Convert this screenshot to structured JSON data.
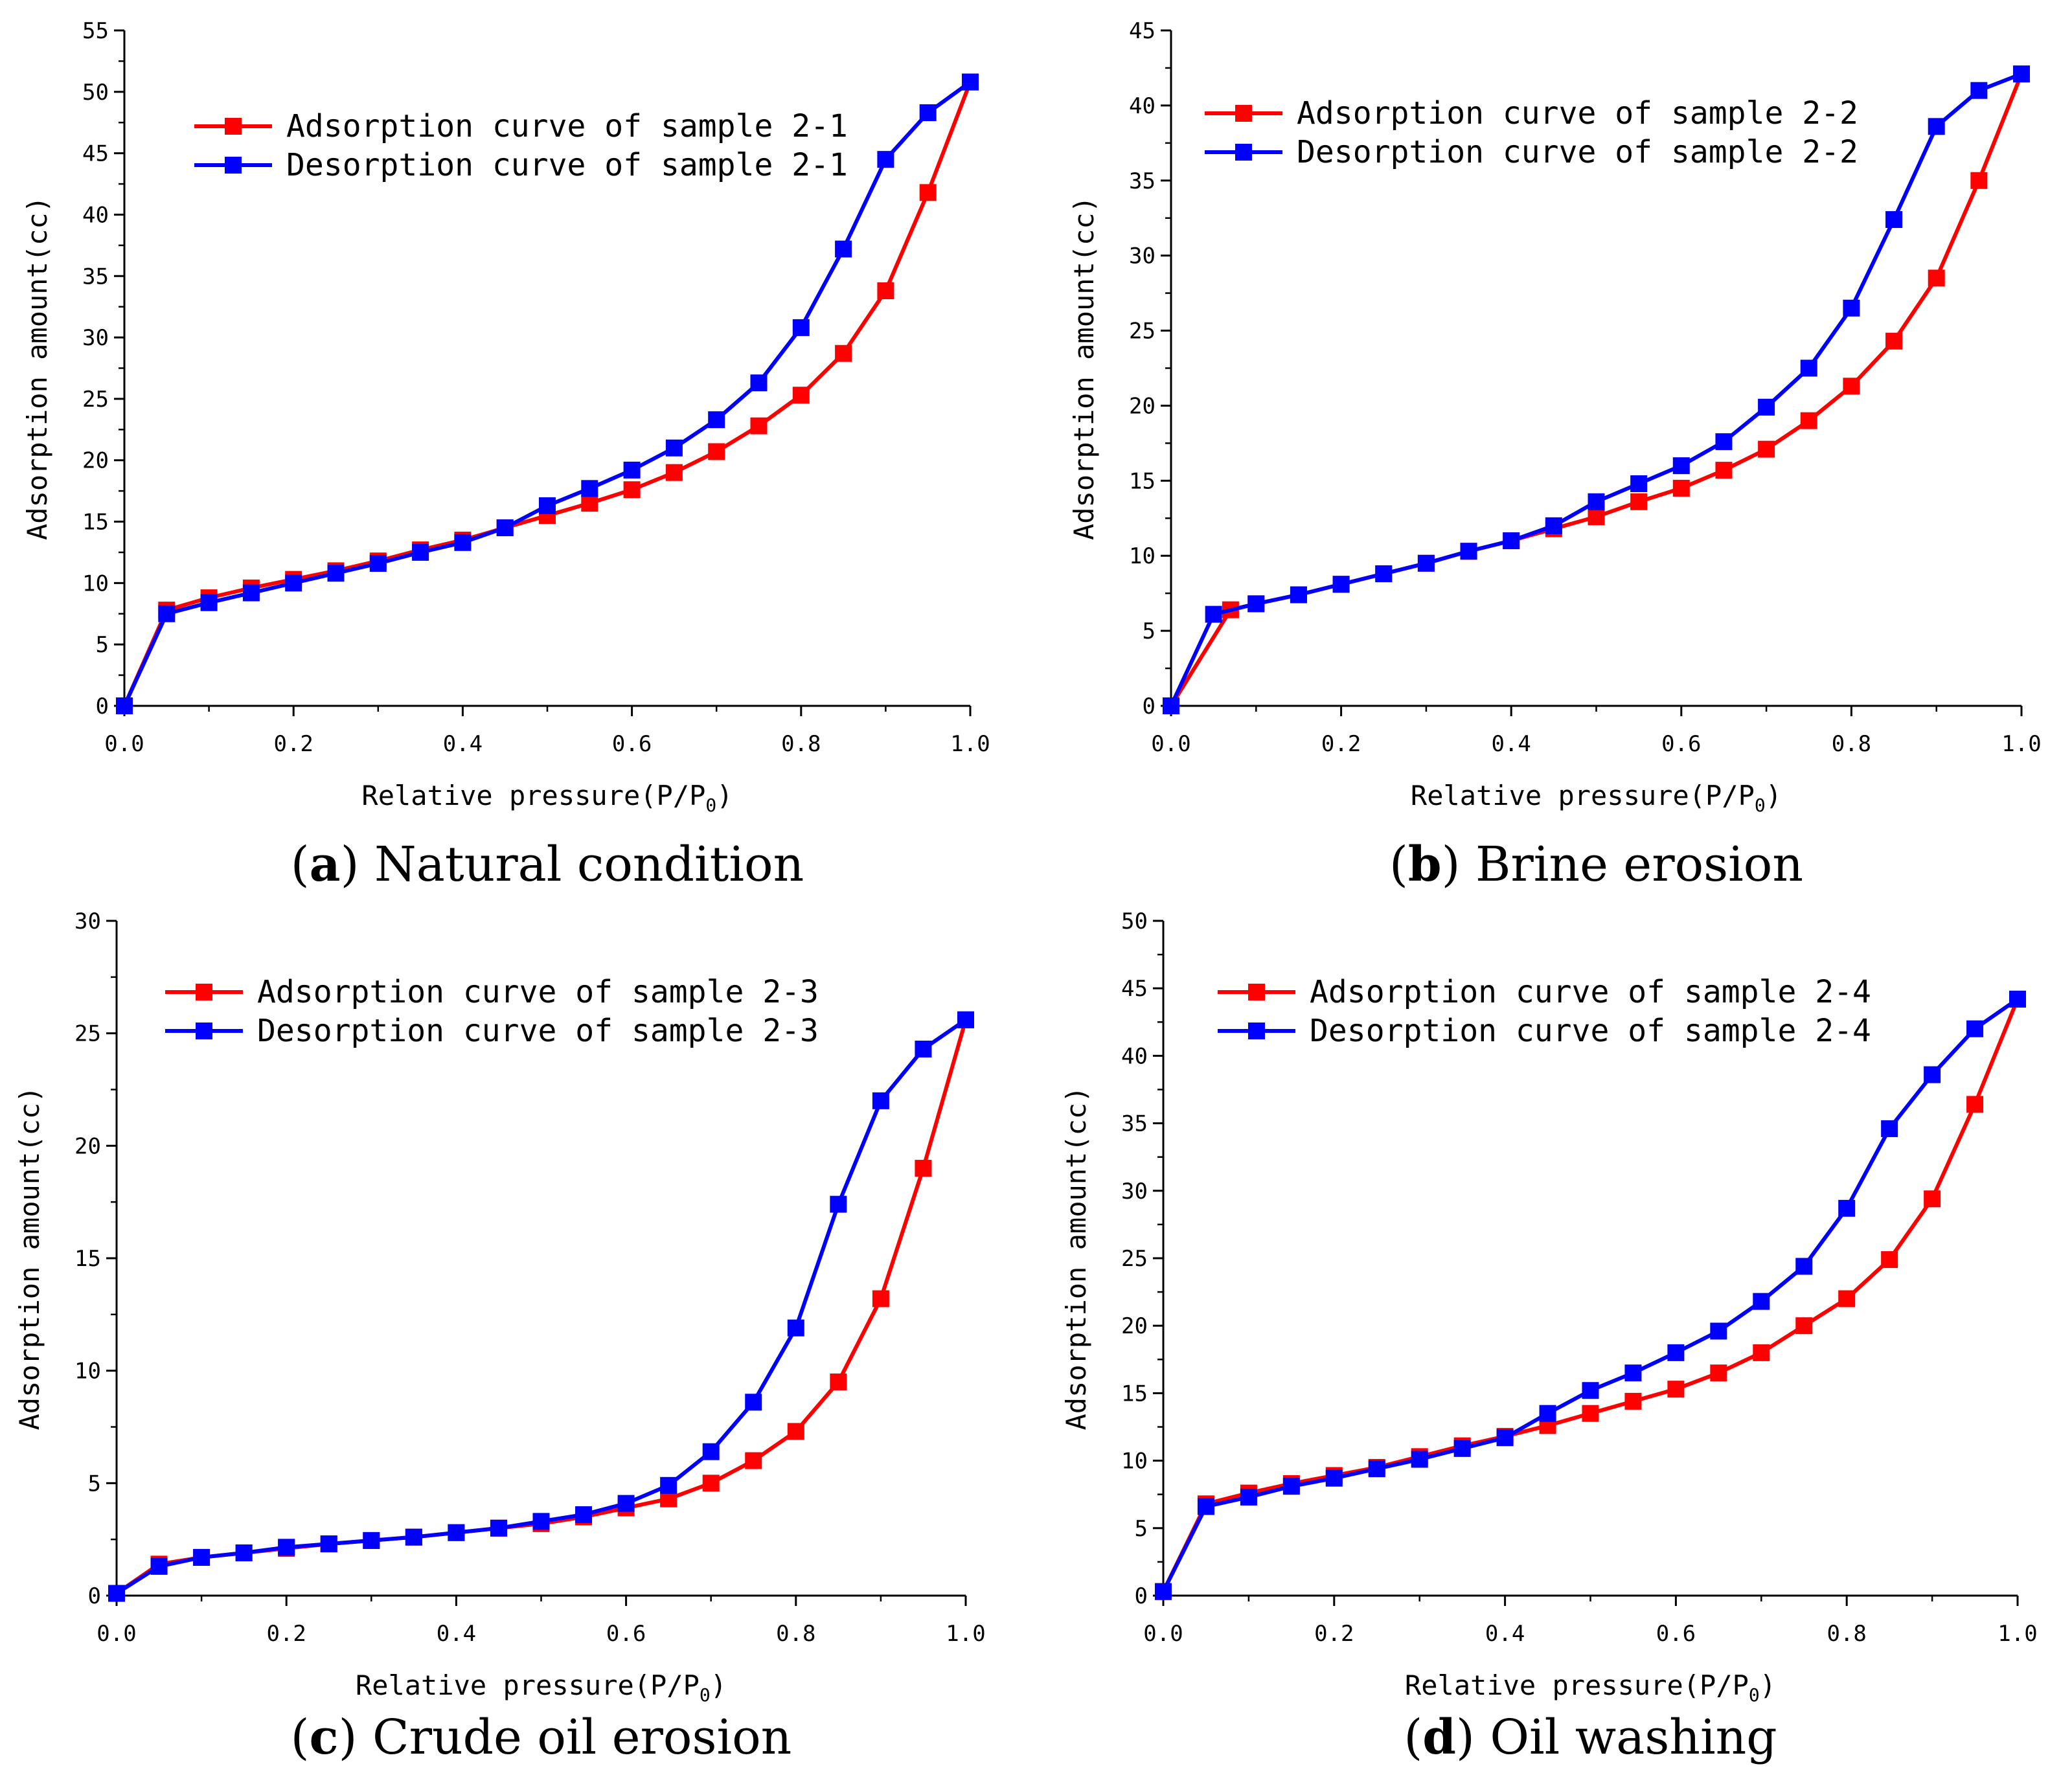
{
  "colors": {
    "adsorption": "#ff0000",
    "desorption": "#0000ff",
    "axis": "#000000"
  },
  "chart_data": [
    {
      "type": "line",
      "panel": "a",
      "caption": {
        "letter": "a",
        "text": "Natural condition"
      },
      "xlabel": "Relative pressure(P/P",
      "xlabel_sub": "0",
      "xlabel_end": ")",
      "ylabel": "Adsorption amount(cc)",
      "xlim": [
        0,
        1.0
      ],
      "ylim": [
        0,
        55
      ],
      "xticks": [
        "0.0",
        "0.2",
        "0.4",
        "0.6",
        "0.8",
        "1.0"
      ],
      "yticks": [
        "0",
        "5",
        "10",
        "15",
        "20",
        "25",
        "30",
        "35",
        "40",
        "45",
        "50",
        "55"
      ],
      "legend_position": "top-left",
      "series": [
        {
          "name": "Adsorption curve of sample 2-1",
          "color": "#ff0000",
          "x": [
            0.0,
            0.05,
            0.1,
            0.15,
            0.2,
            0.25,
            0.3,
            0.35,
            0.4,
            0.45,
            0.5,
            0.55,
            0.6,
            0.65,
            0.7,
            0.75,
            0.8,
            0.85,
            0.9,
            0.95,
            1.0
          ],
          "y": [
            0,
            7.8,
            8.8,
            9.6,
            10.3,
            11,
            11.8,
            12.7,
            13.5,
            14.5,
            15.5,
            16.5,
            17.6,
            19,
            20.7,
            22.8,
            25.3,
            28.7,
            33.8,
            41.8,
            50.8
          ]
        },
        {
          "name": "Desorption curve of sample 2-1",
          "color": "#0000ff",
          "x": [
            0.0,
            0.05,
            0.1,
            0.15,
            0.2,
            0.25,
            0.3,
            0.35,
            0.4,
            0.45,
            0.5,
            0.55,
            0.6,
            0.65,
            0.7,
            0.75,
            0.8,
            0.85,
            0.9,
            0.95,
            1.0
          ],
          "y": [
            0,
            7.5,
            8.4,
            9.2,
            10,
            10.8,
            11.6,
            12.5,
            13.3,
            14.5,
            16.3,
            17.7,
            19.2,
            21,
            23.3,
            26.3,
            30.8,
            37.2,
            44.5,
            48.3,
            50.8
          ]
        }
      ]
    },
    {
      "type": "line",
      "panel": "b",
      "caption": {
        "letter": "b",
        "text": "Brine erosion"
      },
      "xlabel": "Relative pressure(P/P",
      "xlabel_sub": "0",
      "xlabel_end": ")",
      "ylabel": "Adsorption amount(cc)",
      "xlim": [
        0,
        1.0
      ],
      "ylim": [
        0,
        45
      ],
      "xticks": [
        "0.0",
        "0.2",
        "0.4",
        "0.6",
        "0.8",
        "1.0"
      ],
      "yticks": [
        "0",
        "5",
        "10",
        "15",
        "20",
        "25",
        "30",
        "35",
        "40",
        "45"
      ],
      "legend_position": "top-left",
      "series": [
        {
          "name": "Adsorption curve of sample 2-2",
          "color": "#ff0000",
          "x": [
            0.0,
            0.07,
            0.1,
            0.15,
            0.2,
            0.25,
            0.3,
            0.35,
            0.4,
            0.45,
            0.5,
            0.55,
            0.6,
            0.65,
            0.7,
            0.75,
            0.8,
            0.85,
            0.9,
            0.95,
            1.0
          ],
          "y": [
            0,
            6.4,
            6.8,
            7.4,
            8.1,
            8.8,
            9.5,
            10.3,
            11,
            11.8,
            12.6,
            13.6,
            14.5,
            15.7,
            17.1,
            19,
            21.3,
            24.3,
            28.5,
            35,
            42.1
          ]
        },
        {
          "name": "Desorption curve of sample 2-2",
          "color": "#0000ff",
          "x": [
            0.0,
            0.05,
            0.1,
            0.15,
            0.2,
            0.25,
            0.3,
            0.35,
            0.4,
            0.45,
            0.5,
            0.55,
            0.6,
            0.65,
            0.7,
            0.75,
            0.8,
            0.85,
            0.9,
            0.95,
            1.0
          ],
          "y": [
            0,
            6.1,
            6.8,
            7.4,
            8.1,
            8.8,
            9.5,
            10.3,
            11,
            12,
            13.6,
            14.8,
            16,
            17.6,
            19.9,
            22.5,
            26.5,
            32.4,
            38.6,
            41,
            42.1
          ]
        }
      ]
    },
    {
      "type": "line",
      "panel": "c",
      "caption": {
        "letter": "c",
        "text": "Crude oil erosion"
      },
      "xlabel": "Relative pressure(P/P",
      "xlabel_sub": "0",
      "xlabel_end": ")",
      "ylabel": "Adsorption amount(cc)",
      "xlim": [
        0,
        1.0
      ],
      "ylim": [
        0,
        30
      ],
      "xticks": [
        "0.0",
        "0.2",
        "0.4",
        "0.6",
        "0.8",
        "1.0"
      ],
      "yticks": [
        "0",
        "5",
        "10",
        "15",
        "20",
        "25",
        "30"
      ],
      "legend_position": "top-left",
      "series": [
        {
          "name": "Adsorption curve of sample 2-3",
          "color": "#ff0000",
          "x": [
            0.0,
            0.05,
            0.1,
            0.15,
            0.2,
            0.25,
            0.3,
            0.35,
            0.4,
            0.45,
            0.5,
            0.55,
            0.6,
            0.65,
            0.7,
            0.75,
            0.8,
            0.85,
            0.9,
            0.95,
            1.0
          ],
          "y": [
            0.1,
            1.4,
            1.7,
            1.9,
            2.1,
            2.3,
            2.45,
            2.6,
            2.8,
            3.0,
            3.2,
            3.5,
            3.9,
            4.3,
            5.0,
            6.0,
            7.3,
            9.5,
            13.2,
            19,
            25.6
          ]
        },
        {
          "name": "Desorption curve of sample 2-3",
          "color": "#0000ff",
          "x": [
            0.0,
            0.05,
            0.1,
            0.15,
            0.2,
            0.25,
            0.3,
            0.35,
            0.4,
            0.45,
            0.5,
            0.55,
            0.6,
            0.65,
            0.7,
            0.75,
            0.8,
            0.85,
            0.9,
            0.95,
            1.0
          ],
          "y": [
            0.1,
            1.3,
            1.7,
            1.9,
            2.15,
            2.3,
            2.45,
            2.6,
            2.8,
            3.0,
            3.3,
            3.6,
            4.1,
            4.9,
            6.4,
            8.6,
            11.9,
            17.4,
            22,
            24.3,
            25.6
          ]
        }
      ]
    },
    {
      "type": "line",
      "panel": "d",
      "caption": {
        "letter": "d",
        "text": "Oil washing"
      },
      "xlabel": "Relative pressure(P/P",
      "xlabel_sub": "0",
      "xlabel_end": ")",
      "ylabel": "Adsorption amount(cc)",
      "xlim": [
        0,
        1.0
      ],
      "ylim": [
        0,
        50
      ],
      "xticks": [
        "0.0",
        "0.2",
        "0.4",
        "0.6",
        "0.8",
        "1.0"
      ],
      "yticks": [
        "0",
        "5",
        "10",
        "15",
        "20",
        "25",
        "30",
        "35",
        "40",
        "45",
        "50"
      ],
      "legend_position": "top-left",
      "series": [
        {
          "name": "Adsorption curve of sample 2-4",
          "color": "#ff0000",
          "x": [
            0.0,
            0.05,
            0.1,
            0.15,
            0.2,
            0.25,
            0.3,
            0.35,
            0.4,
            0.45,
            0.5,
            0.55,
            0.6,
            0.65,
            0.7,
            0.75,
            0.8,
            0.85,
            0.9,
            0.95,
            1.0
          ],
          "y": [
            0.3,
            6.8,
            7.6,
            8.3,
            8.9,
            9.5,
            10.3,
            11.1,
            11.8,
            12.6,
            13.5,
            14.4,
            15.3,
            16.5,
            18,
            20,
            22,
            24.9,
            29.4,
            36.4,
            44.2
          ]
        },
        {
          "name": "Desorption curve of sample 2-4",
          "color": "#0000ff",
          "x": [
            0.0,
            0.05,
            0.1,
            0.15,
            0.2,
            0.25,
            0.3,
            0.35,
            0.4,
            0.45,
            0.5,
            0.55,
            0.6,
            0.65,
            0.7,
            0.75,
            0.8,
            0.85,
            0.9,
            0.95,
            1.0
          ],
          "y": [
            0.3,
            6.6,
            7.3,
            8.1,
            8.7,
            9.4,
            10.1,
            10.9,
            11.7,
            13.5,
            15.2,
            16.5,
            18,
            19.6,
            21.8,
            24.4,
            28.7,
            34.6,
            38.6,
            42,
            44.2
          ]
        }
      ]
    }
  ]
}
